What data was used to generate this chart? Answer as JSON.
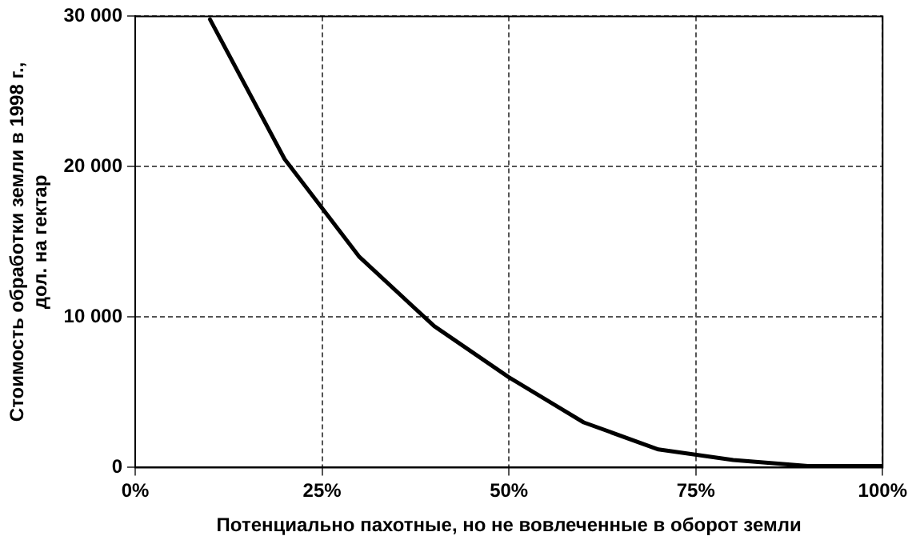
{
  "chart_data": {
    "type": "line",
    "xlabel": "Потенциально пахотные, но не вовлеченные в оборот земли",
    "ylabel": "Стоимость обработки земли в 1998 г.,\nдол. на гектар",
    "x": [
      10,
      20,
      30,
      40,
      50,
      60,
      70,
      80,
      90,
      100
    ],
    "series": [
      {
        "color": "#000000",
        "values": [
          29800,
          20500,
          14000,
          9400,
          6000,
          3000,
          1200,
          500,
          100,
          100
        ]
      }
    ],
    "xlim": [
      0,
      100
    ],
    "xticks": [
      {
        "value": 0,
        "label": "0%"
      },
      {
        "value": 25,
        "label": "25%"
      },
      {
        "value": 50,
        "label": "50%"
      },
      {
        "value": 75,
        "label": "75%"
      },
      {
        "value": 100,
        "label": "100%"
      }
    ],
    "ylim": [
      0,
      30000
    ],
    "yticks": [
      {
        "value": 0,
        "label": "0"
      },
      {
        "value": 10000,
        "label": "10 000"
      },
      {
        "value": 20000,
        "label": "20 000"
      },
      {
        "value": 30000,
        "label": "30 000"
      }
    ],
    "grid": true,
    "legend": false,
    "marker": "none",
    "line_style": "solid"
  }
}
